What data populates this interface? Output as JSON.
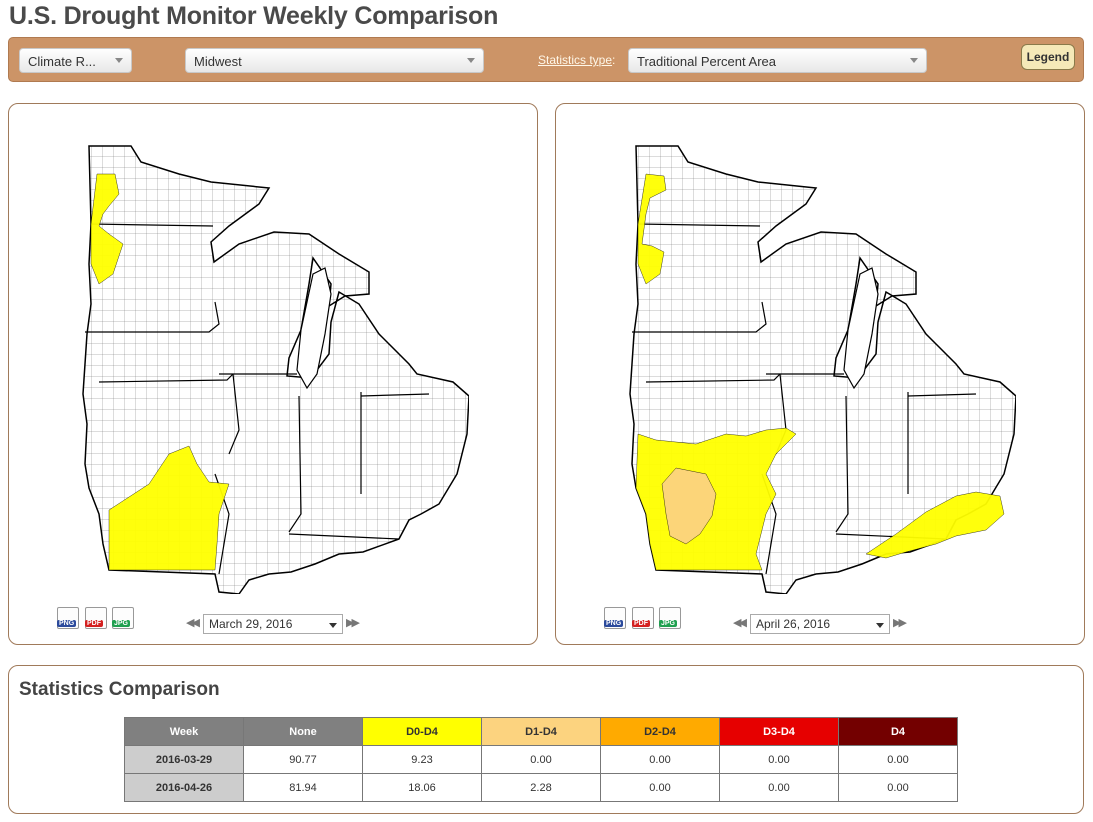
{
  "title": "U.S. Drought Monitor Weekly Comparison",
  "toolbar": {
    "region_type": "Climate R...",
    "region": "Midwest",
    "statistics_type_label": "Statistics type",
    "statistics_type_suffix": ":",
    "statistics_type_value": "Traditional Percent Area",
    "legend_label": "Legend"
  },
  "colors": {
    "toolbar": "#cc9467",
    "none": "#808080",
    "d0": "#ffff00",
    "d1": "#fcd37f",
    "d2": "#ffaa00",
    "d3": "#e60000",
    "d4": "#730000"
  },
  "panels": [
    {
      "date": "March 29, 2016",
      "export_icons": [
        "PNG",
        "PDF",
        "JPG"
      ],
      "map_icon": "midwest-drought-map"
    },
    {
      "date": "April 26, 2016",
      "export_icons": [
        "PNG",
        "PDF",
        "JPG"
      ],
      "map_icon": "midwest-drought-map"
    }
  ],
  "statistics": {
    "heading": "Statistics Comparison",
    "columns": [
      "Week",
      "None",
      "D0-D4",
      "D1-D4",
      "D2-D4",
      "D3-D4",
      "D4"
    ],
    "rows": [
      [
        "2016-03-29",
        "90.77",
        "9.23",
        "0.00",
        "0.00",
        "0.00",
        "0.00"
      ],
      [
        "2016-04-26",
        "81.94",
        "18.06",
        "2.28",
        "0.00",
        "0.00",
        "0.00"
      ]
    ]
  }
}
